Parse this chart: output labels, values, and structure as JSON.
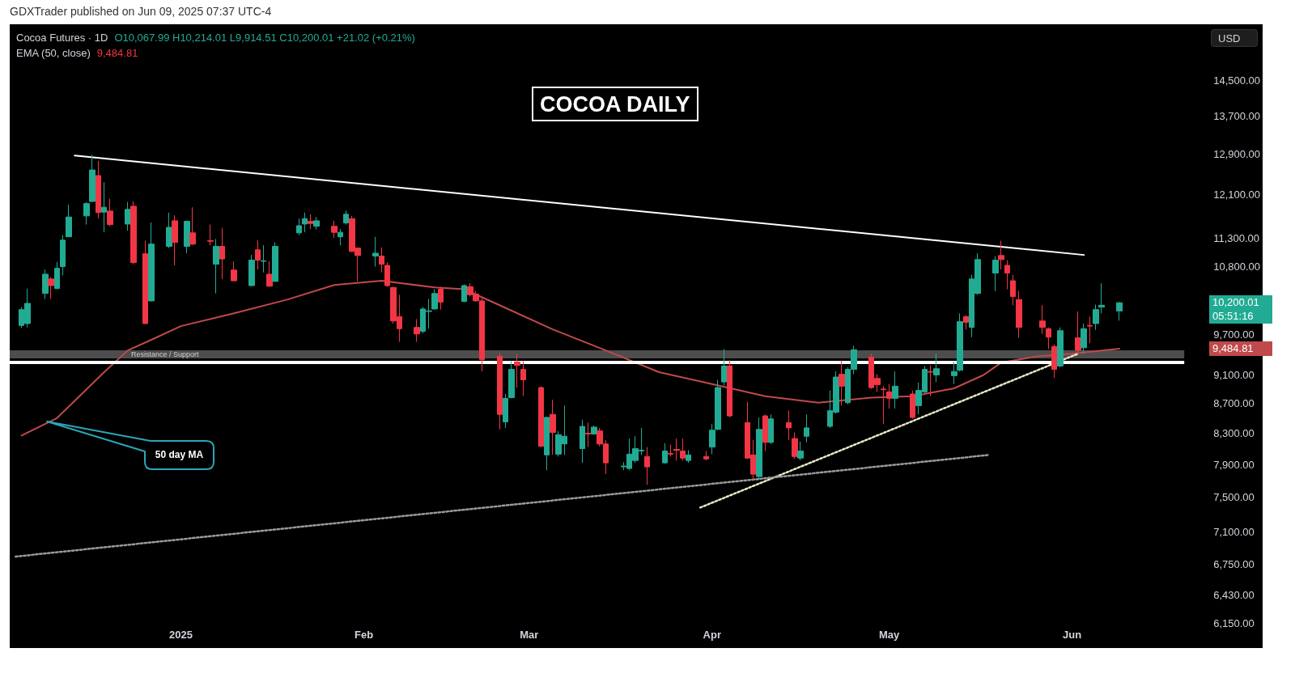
{
  "chart_data": {
    "type": "candlestick",
    "title": "COCOA DAILY",
    "subtitle": "Cocoa Futures · 1D",
    "annotations": [
      "GDXTrader published on Jun 09, 2025 07:37 UTC-4",
      "O10,067.99 H10,214.01 L9,914.51 C10,200.01 +21.02 (+0.21%)",
      "EMA (50, close)",
      "9,484.81",
      "USD",
      "50 day MA",
      "05:51:16",
      "10,200.01",
      "9,484.81"
    ],
    "xlim": [
      "2024-12-03",
      "2025-06-20"
    ],
    "xticks": [
      {
        "value": "2025-01-01",
        "label": "2025"
      },
      {
        "value": "2025-02-01",
        "label": "Feb"
      },
      {
        "value": "2025-03-01",
        "label": "Mar"
      },
      {
        "value": "2025-04-01",
        "label": "Apr"
      },
      {
        "value": "2025-05-01",
        "label": "May"
      },
      {
        "value": "2025-06-01",
        "label": "Jun"
      }
    ],
    "ylim": [
      6150,
      14500
    ],
    "log": "y",
    "yticks": [
      {
        "value": 6150,
        "label": "6,150.00"
      },
      {
        "value": 6430,
        "label": "6,430.00"
      },
      {
        "value": 6750,
        "label": "6,750.00"
      },
      {
        "value": 7100,
        "label": "7,100.00"
      },
      {
        "value": 7500,
        "label": "7,500.00"
      },
      {
        "value": 7900,
        "label": "7,900.00"
      },
      {
        "value": 8300,
        "label": "8,300.00"
      },
      {
        "value": 8700,
        "label": "8,700.00"
      },
      {
        "value": 9100,
        "label": "9,100.00"
      },
      {
        "value": 9700,
        "label": "9,700.00"
      },
      {
        "value": 10800,
        "label": "10,800.00"
      },
      {
        "value": 11300,
        "label": "11,300.00"
      },
      {
        "value": 12100,
        "label": "12,100.00"
      },
      {
        "value": 12900,
        "label": "12,900.00"
      },
      {
        "value": 13700,
        "label": "13,700.00"
      },
      {
        "value": 14500,
        "label": "14,500.00"
      }
    ],
    "grid": false,
    "marker": "none",
    "bands": [
      {
        "axis": "y",
        "from": 9340,
        "to": 9460,
        "label": "Resistance / Support",
        "color": "#5a5a5a"
      }
    ],
    "ref_lines": [
      {
        "axis": "y",
        "value": 9290,
        "color": "#ffffff"
      }
    ],
    "series": [
      {
        "type": "candlestick",
        "x": [
          "2024-12-05",
          "2024-12-06",
          "2024-12-09",
          "2024-12-10",
          "2024-12-11",
          "2024-12-12",
          "2024-12-13",
          "2024-12-16",
          "2024-12-17",
          "2024-12-18",
          "2024-12-19",
          "2024-12-20",
          "2024-12-23",
          "2024-12-24",
          "2024-12-26",
          "2024-12-27",
          "2024-12-30",
          "2024-12-31",
          "2025-01-02",
          "2025-01-03",
          "2025-01-06",
          "2025-01-07",
          "2025-01-08",
          "2025-01-10",
          "2025-01-13",
          "2025-01-14",
          "2025-01-15",
          "2025-01-16",
          "2025-01-17",
          "2025-01-21",
          "2025-01-22",
          "2025-01-23",
          "2025-01-24",
          "2025-01-27",
          "2025-01-28",
          "2025-01-29",
          "2025-01-30",
          "2025-01-31",
          "2025-02-03",
          "2025-02-04",
          "2025-02-05",
          "2025-02-06",
          "2025-02-07",
          "2025-02-10",
          "2025-02-11",
          "2025-02-12",
          "2025-02-13",
          "2025-02-14",
          "2025-02-18",
          "2025-02-19",
          "2025-02-20",
          "2025-02-21",
          "2025-02-24",
          "2025-02-25",
          "2025-02-26",
          "2025-02-27",
          "2025-02-28",
          "2025-03-03",
          "2025-03-04",
          "2025-03-05",
          "2025-03-06",
          "2025-03-07",
          "2025-03-10",
          "2025-03-11",
          "2025-03-12",
          "2025-03-13",
          "2025-03-14",
          "2025-03-17",
          "2025-03-18",
          "2025-03-19",
          "2025-03-20",
          "2025-03-21",
          "2025-03-24",
          "2025-03-25",
          "2025-03-26",
          "2025-03-27",
          "2025-03-28",
          "2025-03-31",
          "2025-04-01",
          "2025-04-02",
          "2025-04-03",
          "2025-04-04",
          "2025-04-07",
          "2025-04-08",
          "2025-04-09",
          "2025-04-10",
          "2025-04-11",
          "2025-04-14",
          "2025-04-15",
          "2025-04-16",
          "2025-04-17",
          "2025-04-21",
          "2025-04-22",
          "2025-04-23",
          "2025-04-24",
          "2025-04-25",
          "2025-04-28",
          "2025-04-29",
          "2025-04-30",
          "2025-05-01",
          "2025-05-02",
          "2025-05-05",
          "2025-05-06",
          "2025-05-07",
          "2025-05-08",
          "2025-05-09",
          "2025-05-12",
          "2025-05-13",
          "2025-05-14",
          "2025-05-15",
          "2025-05-16",
          "2025-05-19",
          "2025-05-20",
          "2025-05-21",
          "2025-05-22",
          "2025-05-23",
          "2025-05-27",
          "2025-05-28",
          "2025-05-29",
          "2025-05-30",
          "2025-06-02",
          "2025-06-03",
          "2025-06-04",
          "2025-06-05",
          "2025-06-06",
          "2025-06-09"
        ],
        "ohlc": [
          [
            9840,
            10130,
            9800,
            10090
          ],
          [
            9870,
            10430,
            9810,
            10190
          ],
          [
            10350,
            10750,
            10260,
            10670
          ],
          [
            10590,
            10620,
            10260,
            10480
          ],
          [
            10430,
            10880,
            10420,
            10770
          ],
          [
            10800,
            11350,
            10650,
            11260
          ],
          [
            11320,
            11910,
            11320,
            11680
          ],
          [
            11700,
            11960,
            11540,
            11930
          ],
          [
            11970,
            12880,
            11960,
            12580
          ],
          [
            12470,
            12760,
            11650,
            11760
          ],
          [
            11770,
            12340,
            11400,
            11860
          ],
          [
            11790,
            12020,
            11510,
            11540
          ],
          [
            11550,
            11960,
            11430,
            11820
          ],
          [
            11880,
            11970,
            10840,
            10870
          ],
          [
            11020,
            11250,
            9860,
            9870
          ],
          [
            10230,
            11580,
            10220,
            11190
          ],
          [
            11150,
            11760,
            11120,
            11490
          ],
          [
            11610,
            11710,
            10820,
            11220
          ],
          [
            11150,
            11610,
            11030,
            11600
          ],
          [
            11390,
            11860,
            11170,
            11190
          ],
          [
            11250,
            11540,
            11170,
            11240
          ],
          [
            10840,
            11280,
            10350,
            11150
          ],
          [
            11150,
            11480,
            10590,
            10930
          ],
          [
            10740,
            10890,
            10550,
            10560
          ],
          [
            10480,
            11000,
            10470,
            10910
          ],
          [
            11090,
            11260,
            10750,
            10910
          ],
          [
            10890,
            11170,
            10700,
            10900
          ],
          [
            10670,
            10890,
            10460,
            10470
          ],
          [
            10550,
            11220,
            10540,
            11150
          ],
          [
            11390,
            11650,
            11350,
            11520
          ],
          [
            11550,
            11760,
            11400,
            11650
          ],
          [
            11600,
            11730,
            11460,
            11560
          ],
          [
            11510,
            11680,
            11450,
            11610
          ],
          [
            11510,
            11610,
            11300,
            11400
          ],
          [
            11320,
            11460,
            11170,
            11400
          ],
          [
            11570,
            11800,
            11540,
            11730
          ],
          [
            11650,
            11700,
            11050,
            11060
          ],
          [
            11120,
            11130,
            10550,
            10990
          ],
          [
            10980,
            11320,
            10800,
            11030
          ],
          [
            10980,
            11130,
            10700,
            10840
          ],
          [
            10820,
            10870,
            10460,
            10480
          ],
          [
            10450,
            10460,
            9870,
            9910
          ],
          [
            9980,
            10330,
            9590,
            9790
          ],
          [
            9810,
            9940,
            9590,
            9710
          ],
          [
            9750,
            10130,
            9720,
            10100
          ],
          [
            10060,
            10260,
            9790,
            10070
          ],
          [
            10100,
            10420,
            10090,
            10350
          ],
          [
            10420,
            10460,
            10090,
            10210
          ],
          [
            10220,
            10500,
            10210,
            10480
          ],
          [
            10460,
            10520,
            10300,
            10330
          ],
          [
            10340,
            10390,
            10220,
            10230
          ],
          [
            10230,
            10270,
            9150,
            9320
          ],
          [
            9370,
            9420,
            8350,
            8550
          ],
          [
            8450,
            8830,
            8370,
            8770
          ],
          [
            8780,
            9300,
            8770,
            9180
          ],
          [
            9290,
            9410,
            8920,
            9240
          ],
          [
            9180,
            9300,
            8800,
            9030
          ],
          [
            8920,
            8940,
            8120,
            8130
          ],
          [
            8020,
            8520,
            7830,
            8510
          ],
          [
            8550,
            8750,
            8020,
            8310
          ],
          [
            8030,
            8330,
            8000,
            8280
          ],
          [
            8160,
            8670,
            8020,
            8260
          ],
          [
            8100,
            8480,
            7920,
            8390
          ],
          [
            8300,
            8440,
            8120,
            8290
          ],
          [
            8290,
            8400,
            8280,
            8380
          ],
          [
            8330,
            8370,
            8130,
            8160
          ],
          [
            8160,
            8210,
            7780,
            7920
          ],
          [
            7870,
            7930,
            7830,
            7880
          ],
          [
            7850,
            8230,
            7830,
            8030
          ],
          [
            7950,
            8260,
            7920,
            8100
          ],
          [
            8070,
            8370,
            8020,
            8080
          ],
          [
            8000,
            8120,
            7650,
            7870
          ],
          [
            7920,
            8170,
            7910,
            8070
          ],
          [
            8040,
            8150,
            8000,
            8030
          ],
          [
            8090,
            8230,
            7950,
            8080
          ],
          [
            8070,
            8230,
            7950,
            7980
          ],
          [
            7950,
            8080,
            7920,
            8020
          ],
          [
            8000,
            8070,
            7950,
            7970
          ],
          [
            8120,
            8420,
            8030,
            8340
          ],
          [
            8350,
            9030,
            8340,
            8920
          ],
          [
            9000,
            9480,
            8950,
            9230
          ],
          [
            9230,
            9320,
            8510,
            8530
          ],
          [
            8440,
            8720,
            7970,
            7980
          ],
          [
            8020,
            8210,
            7700,
            7780
          ],
          [
            7750,
            8510,
            7730,
            8350
          ],
          [
            8530,
            8550,
            8070,
            8180
          ],
          [
            8180,
            8550,
            8160,
            8490
          ],
          [
            8440,
            8600,
            8210,
            8370
          ],
          [
            8230,
            8310,
            7970,
            8000
          ],
          [
            7980,
            8190,
            7950,
            8070
          ],
          [
            8260,
            8550,
            8180,
            8370
          ],
          [
            8390,
            8880,
            8370,
            8600
          ],
          [
            8580,
            9150,
            8560,
            9070
          ],
          [
            9110,
            9310,
            8670,
            8940
          ],
          [
            8710,
            9210,
            8690,
            9180
          ],
          [
            9180,
            9530,
            9110,
            9470
          ],
          [
            9360,
            9410,
            8900,
            8920
          ],
          [
            9050,
            9110,
            8860,
            8960
          ],
          [
            8900,
            8940,
            8420,
            8890
          ],
          [
            8860,
            8970,
            8630,
            8770
          ],
          [
            8770,
            9150,
            8630,
            8940
          ],
          [
            8830,
            8880,
            8490,
            8510
          ],
          [
            8670,
            8990,
            8550,
            8880
          ],
          [
            8860,
            9230,
            8840,
            9180
          ],
          [
            9150,
            9240,
            8800,
            9140
          ],
          [
            9100,
            9410,
            9000,
            9190
          ],
          [
            9090,
            9290,
            8970,
            9150
          ],
          [
            9170,
            10030,
            9150,
            9900
          ],
          [
            9980,
            10000,
            9780,
            9890
          ],
          [
            9810,
            10660,
            9660,
            10590
          ],
          [
            10350,
            11030,
            10330,
            10920
          ],
          [
            10690,
            10980,
            10390,
            10910
          ],
          [
            10990,
            11250,
            10750,
            10920
          ],
          [
            10820,
            10910,
            10420,
            10690
          ],
          [
            10560,
            10660,
            10160,
            10300
          ],
          [
            10250,
            10390,
            9650,
            9810
          ],
          [
            9910,
            10160,
            9710,
            9810
          ],
          [
            9790,
            9810,
            9480,
            9660
          ],
          [
            9520,
            9550,
            9060,
            9180
          ],
          [
            9230,
            9810,
            9210,
            9760
          ],
          [
            9650,
            10060,
            9410,
            9460
          ],
          [
            9500,
            9870,
            9410,
            9790
          ],
          [
            9840,
            9980,
            9570,
            9830
          ],
          [
            9870,
            10170,
            9770,
            10090
          ],
          [
            10130,
            10520,
            10030,
            10160
          ],
          [
            10067.99,
            10214.01,
            9914.51,
            10200.01
          ]
        ],
        "colors": [
          "#22ab94",
          "#22ab94",
          "#22ab94",
          "#f23645",
          "#22ab94",
          "#22ab94",
          "#22ab94",
          "#22ab94",
          "#22ab94",
          "#f23645",
          "#22ab94",
          "#f23645",
          "#22ab94",
          "#f23645",
          "#f23645",
          "#22ab94",
          "#22ab94",
          "#f23645",
          "#22ab94",
          "#f23645",
          "#f23645",
          "#22ab94",
          "#f23645",
          "#f23645",
          "#22ab94",
          "#f23645",
          "#22ab94",
          "#f23645",
          "#22ab94",
          "#22ab94",
          "#22ab94",
          "#f23645",
          "#22ab94",
          "#f23645",
          "#22ab94",
          "#22ab94",
          "#f23645",
          "#f23645",
          "#22ab94",
          "#f23645",
          "#f23645",
          "#f23645",
          "#f23645",
          "#f23645",
          "#22ab94",
          "#22ab94",
          "#22ab94",
          "#f23645",
          "#22ab94",
          "#f23645",
          "#f23645",
          "#f23645",
          "#f23645",
          "#22ab94",
          "#22ab94",
          "#f23645",
          "#f23645",
          "#f23645",
          "#22ab94",
          "#f23645",
          "#22ab94",
          "#22ab94",
          "#22ab94",
          "#f23645",
          "#22ab94",
          "#f23645",
          "#f23645",
          "#22ab94",
          "#22ab94",
          "#22ab94",
          "#22ab94",
          "#f23645",
          "#22ab94",
          "#f23645",
          "#f23645",
          "#f23645",
          "#22ab94",
          "#f23645",
          "#22ab94",
          "#22ab94",
          "#22ab94",
          "#f23645",
          "#f23645",
          "#f23645",
          "#22ab94",
          "#f23645",
          "#22ab94",
          "#f23645",
          "#f23645",
          "#22ab94",
          "#22ab94",
          "#22ab94",
          "#22ab94",
          "#f23645",
          "#22ab94",
          "#22ab94",
          "#f23645",
          "#f23645",
          "#f23645",
          "#f23645",
          "#22ab94",
          "#f23645",
          "#22ab94",
          "#22ab94",
          "#f23645",
          "#22ab94",
          "#22ab94",
          "#22ab94",
          "#f23645",
          "#22ab94",
          "#22ab94",
          "#22ab94",
          "#f23645",
          "#f23645",
          "#f23645",
          "#f23645",
          "#f23645",
          "#f23645",
          "#f23645",
          "#22ab94",
          "#f23645",
          "#22ab94",
          "#f23645",
          "#22ab94",
          "#22ab94",
          "#22ab94"
        ]
      },
      {
        "type": "line",
        "color": "#c0494c",
        "line_style": "solid",
        "x": [
          "2024-12-05",
          "2024-12-11",
          "2024-12-19",
          "2024-12-23",
          "2024-12-27",
          "2025-01-01",
          "2025-01-10",
          "2025-01-19",
          "2025-01-27",
          "2025-02-04",
          "2025-02-13",
          "2025-02-18",
          "2025-02-24",
          "2025-03-05",
          "2025-03-14",
          "2025-03-23",
          "2025-04-01",
          "2025-04-10",
          "2025-04-19",
          "2025-04-28",
          "2025-05-05",
          "2025-05-12",
          "2025-05-17",
          "2025-05-20",
          "2025-05-26",
          "2025-06-01",
          "2025-06-09"
        ],
        "values": [
          8270,
          8500,
          9140,
          9460,
          9620,
          9830,
          10030,
          10250,
          10490,
          10560,
          10450,
          10420,
          10160,
          9780,
          9460,
          9140,
          8970,
          8800,
          8710,
          8780,
          8800,
          8910,
          9100,
          9280,
          9370,
          9410,
          9484.81
        ]
      },
      {
        "type": "line",
        "color": "#ffffff",
        "line_style": "solid",
        "x": [
          "2024-12-14",
          "2025-06-03"
        ],
        "values": [
          12870,
          11000
        ]
      },
      {
        "type": "line",
        "color": "#e8e8c8",
        "line_style": "dotted",
        "x": [
          "2025-03-30",
          "2025-06-02"
        ],
        "values": [
          7380,
          9410
        ]
      },
      {
        "type": "line",
        "color": "#9a9a9a",
        "line_style": "dotted",
        "x": [
          "2024-12-04",
          "2025-05-18"
        ],
        "values": [
          6830,
          8020
        ]
      }
    ]
  }
}
